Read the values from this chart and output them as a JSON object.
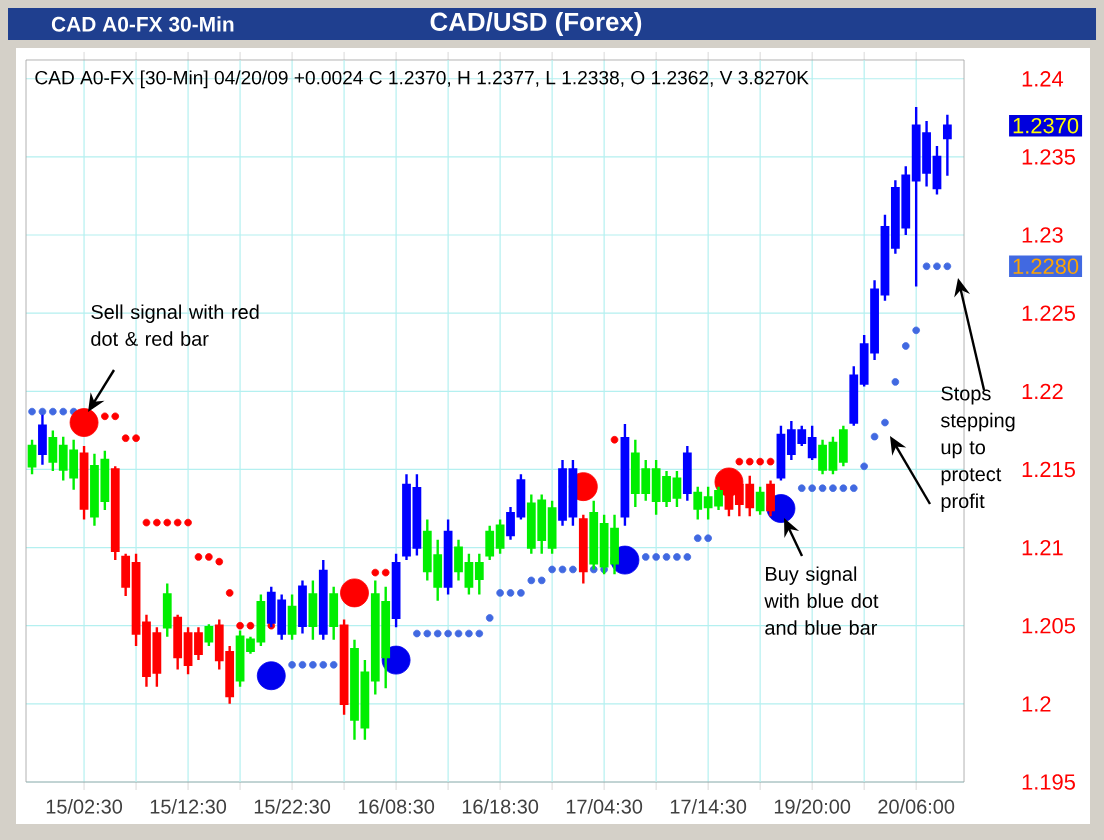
{
  "chart_data": {
    "type": "candlestick",
    "title": "CAD/USD (Forex)",
    "subtitle": "CAD A0-FX 30-Min",
    "categories": [
      null,
      null,
      null,
      null,
      null,
      "15/02:30",
      null,
      null,
      null,
      null,
      null,
      null,
      null,
      null,
      null,
      "15/12:30",
      null,
      null,
      null,
      null,
      null,
      null,
      null,
      null,
      null,
      "15/22:30",
      null,
      null,
      null,
      null,
      null,
      null,
      null,
      null,
      null,
      "16/08:30",
      null,
      null,
      null,
      null,
      null,
      null,
      null,
      null,
      null,
      "16/18:30",
      null,
      null,
      null,
      null,
      null,
      null,
      null,
      null,
      null,
      "17/04:30",
      null,
      null,
      null,
      null,
      null,
      null,
      null,
      null,
      null,
      "17/14:30",
      null,
      null,
      null,
      null,
      null,
      null,
      null,
      null,
      null,
      "19/20:00",
      null,
      null,
      null,
      null,
      null,
      null,
      null,
      null,
      null,
      "20/06:00",
      null,
      null,
      null
    ],
    "ohlc": [
      [
        1.2152,
        1.2169,
        1.2147,
        1.2165
      ],
      [
        1.216,
        1.2185,
        1.2153,
        1.2178
      ],
      [
        1.2155,
        1.2175,
        1.2149,
        1.217
      ],
      [
        1.215,
        1.2171,
        1.2143,
        1.2165
      ],
      [
        1.2145,
        1.2169,
        1.2137,
        1.2162
      ],
      [
        1.216,
        1.2165,
        1.2118,
        1.2125
      ],
      [
        1.212,
        1.216,
        1.2114,
        1.2152
      ],
      [
        1.213,
        1.2162,
        1.2124,
        1.2156
      ],
      [
        1.215,
        1.2152,
        1.2092,
        1.2098
      ],
      [
        1.2094,
        1.2096,
        1.2069,
        1.2075
      ],
      [
        1.209,
        1.2096,
        1.2037,
        1.2045
      ],
      [
        1.2052,
        1.2057,
        1.2011,
        1.2018
      ],
      [
        1.2045,
        1.2049,
        1.2011,
        1.202
      ],
      [
        1.2049,
        1.2077,
        1.2043,
        1.207
      ],
      [
        1.2055,
        1.2057,
        1.2022,
        1.203
      ],
      [
        1.2045,
        1.2049,
        1.2019,
        1.2025
      ],
      [
        1.2045,
        1.2049,
        1.2028,
        1.2032
      ],
      [
        1.204,
        1.2051,
        1.2037,
        1.2049
      ],
      [
        1.205,
        1.2054,
        1.2022,
        1.2028
      ],
      [
        1.2033,
        1.2037,
        1.2,
        1.2005
      ],
      [
        1.2015,
        1.2047,
        1.2011,
        1.2043
      ],
      [
        1.2034,
        1.2043,
        1.2032,
        1.2041
      ],
      [
        1.204,
        1.207,
        1.2037,
        1.2065
      ],
      [
        1.2052,
        1.2075,
        1.2049,
        1.2071
      ],
      [
        1.2045,
        1.207,
        1.2041,
        1.2066
      ],
      [
        1.2045,
        1.207,
        1.2041,
        1.2062
      ],
      [
        1.205,
        1.2079,
        1.2045,
        1.2075
      ],
      [
        1.205,
        1.2079,
        1.2041,
        1.207
      ],
      [
        1.2045,
        1.2092,
        1.2041,
        1.2085
      ],
      [
        1.205,
        1.2075,
        1.2041,
        1.207
      ],
      [
        1.205,
        1.2054,
        1.1993,
        1.2
      ],
      [
        1.199,
        1.2041,
        1.1977,
        1.2035
      ],
      [
        1.1985,
        1.2028,
        1.1977,
        1.202
      ],
      [
        1.2015,
        1.2079,
        1.2006,
        1.207
      ],
      [
        1.203,
        1.2075,
        1.201,
        1.2065
      ],
      [
        1.2055,
        1.2096,
        1.2049,
        1.209
      ],
      [
        1.2095,
        1.2147,
        1.2092,
        1.214
      ],
      [
        1.21,
        1.2147,
        1.2095,
        1.2138
      ],
      [
        1.2085,
        1.2118,
        1.2079,
        1.211
      ],
      [
        1.2075,
        1.2105,
        1.2066,
        1.2095
      ],
      [
        1.2075,
        1.2118,
        1.207,
        1.211
      ],
      [
        1.2085,
        1.2105,
        1.2079,
        1.21
      ],
      [
        1.2075,
        1.2096,
        1.207,
        1.209
      ],
      [
        1.208,
        1.2096,
        1.207,
        1.209
      ],
      [
        1.2095,
        1.2114,
        1.2092,
        1.211
      ],
      [
        1.21,
        1.2118,
        1.2096,
        1.2114
      ],
      [
        1.2108,
        1.2126,
        1.2105,
        1.2122
      ],
      [
        1.212,
        1.2147,
        1.2118,
        1.2143
      ],
      [
        1.21,
        1.2134,
        1.2096,
        1.2128
      ],
      [
        1.2105,
        1.2134,
        1.2096,
        1.213
      ],
      [
        1.21,
        1.213,
        1.2096,
        1.2125
      ],
      [
        1.2118,
        1.2156,
        1.2114,
        1.215
      ],
      [
        1.212,
        1.2156,
        1.2114,
        1.215
      ],
      [
        1.2118,
        1.2121,
        1.2077,
        1.2085
      ],
      [
        1.209,
        1.213,
        1.2086,
        1.2122
      ],
      [
        1.2088,
        1.2121,
        1.2083,
        1.2115
      ],
      [
        1.209,
        1.2121,
        1.2083,
        1.2112
      ],
      [
        1.212,
        1.2179,
        1.2114,
        1.217
      ],
      [
        1.2135,
        1.2169,
        1.2126,
        1.216
      ],
      [
        1.2135,
        1.2156,
        1.213,
        1.215
      ],
      [
        1.213,
        1.2156,
        1.2121,
        1.215
      ],
      [
        1.213,
        1.2149,
        1.2126,
        1.2145
      ],
      [
        1.2132,
        1.2149,
        1.2126,
        1.2144
      ],
      [
        1.2135,
        1.2165,
        1.213,
        1.216
      ],
      [
        1.2125,
        1.2139,
        1.2118,
        1.2135
      ],
      [
        1.2126,
        1.2139,
        1.2118,
        1.2132
      ],
      [
        1.2127,
        1.2139,
        1.2124,
        1.2136
      ],
      [
        1.2143,
        1.2147,
        1.212,
        1.2125
      ],
      [
        1.214,
        1.2147,
        1.212,
        1.2128
      ],
      [
        1.214,
        1.2146,
        1.212,
        1.2126
      ],
      [
        1.2124,
        1.2139,
        1.2121,
        1.2135
      ],
      [
        1.214,
        1.2143,
        1.212,
        1.2124
      ],
      [
        1.2145,
        1.2178,
        1.2143,
        1.2172
      ],
      [
        1.216,
        1.2181,
        1.2156,
        1.2175
      ],
      [
        1.2167,
        1.2178,
        1.2165,
        1.2175
      ],
      [
        1.2158,
        1.2178,
        1.2156,
        1.217
      ],
      [
        1.215,
        1.2169,
        1.2147,
        1.2165
      ],
      [
        1.215,
        1.2171,
        1.2147,
        1.2167
      ],
      [
        1.2155,
        1.2178,
        1.2152,
        1.2175
      ],
      [
        1.218,
        1.2216,
        1.2178,
        1.221
      ],
      [
        1.2205,
        1.2236,
        1.2203,
        1.223
      ],
      [
        1.2225,
        1.2271,
        1.222,
        1.2265
      ],
      [
        1.2262,
        1.2313,
        1.2258,
        1.2305
      ],
      [
        1.2292,
        1.2335,
        1.2288,
        1.233
      ],
      [
        1.2305,
        1.2344,
        1.23,
        1.2338
      ],
      [
        1.2335,
        1.2382,
        1.2267,
        1.237
      ],
      [
        1.234,
        1.2373,
        1.2331,
        1.2365
      ],
      [
        1.233,
        1.2357,
        1.2326,
        1.235
      ],
      [
        1.2362,
        1.2377,
        1.2338,
        1.237
      ]
    ],
    "colors": [
      "#00ee00",
      "#0000ff",
      "#00ee00",
      "#00ee00",
      "#00ee00",
      "#ff0000",
      "#00ee00",
      "#00ee00",
      "#ff0000",
      "#ff0000",
      "#ff0000",
      "#ff0000",
      "#ff0000",
      "#00ee00",
      "#ff0000",
      "#ff0000",
      "#ff0000",
      "#00ee00",
      "#ff0000",
      "#ff0000",
      "#00ee00",
      "#00ee00",
      "#00ee00",
      "#0000ff",
      "#0000ff",
      "#00ee00",
      "#0000ff",
      "#00ee00",
      "#0000ff",
      "#00ee00",
      "#ff0000",
      "#00ee00",
      "#00ee00",
      "#00ee00",
      "#00ee00",
      "#0000ff",
      "#0000ff",
      "#0000ff",
      "#00ee00",
      "#00ee00",
      "#0000ff",
      "#00ee00",
      "#00ee00",
      "#00ee00",
      "#00ee00",
      "#00ee00",
      "#0000ff",
      "#0000ff",
      "#00ee00",
      "#00ee00",
      "#00ee00",
      "#0000ff",
      "#0000ff",
      "#ff0000",
      "#00ee00",
      "#00ee00",
      "#00ee00",
      "#0000ff",
      "#00ee00",
      "#00ee00",
      "#00ee00",
      "#00ee00",
      "#00ee00",
      "#0000ff",
      "#00ee00",
      "#00ee00",
      "#00ee00",
      "#ff0000",
      "#ff0000",
      "#ff0000",
      "#00ee00",
      "#ff0000",
      "#0000ff",
      "#0000ff",
      "#0000ff",
      "#0000ff",
      "#00ee00",
      "#00ee00",
      "#00ee00",
      "#0000ff",
      "#0000ff",
      "#0000ff",
      "#0000ff",
      "#0000ff",
      "#0000ff",
      "#0000ff",
      "#0000ff",
      "#0000ff",
      "#0000ff"
    ],
    "series": [
      {
        "type": "scatter",
        "color": "#ff0000",
        "marker": "circle",
        "values": [
          null,
          null,
          null,
          null,
          null,
          null,
          null,
          1.2184,
          1.2184,
          1.217,
          1.217,
          1.2116,
          1.2116,
          1.2116,
          1.2116,
          1.2116,
          1.2094,
          1.2094,
          1.2091,
          1.2071,
          1.205,
          1.205,
          null,
          1.205,
          null,
          null,
          null,
          null,
          null,
          null,
          null,
          null,
          null,
          1.2084,
          1.2084,
          null,
          null,
          null,
          null,
          null,
          null,
          null,
          null,
          null,
          null,
          null,
          null,
          null,
          null,
          null,
          null,
          null,
          null,
          null,
          null,
          null,
          1.2169,
          null,
          null,
          null,
          null,
          null,
          null,
          null,
          null,
          null,
          null,
          null,
          1.2155,
          1.2155,
          1.2155,
          1.2155,
          null,
          null,
          null,
          null,
          null,
          null,
          null,
          null,
          null,
          null,
          null,
          null,
          null,
          null,
          null,
          null,
          null
        ]
      },
      {
        "type": "scatter",
        "color": "#4169e1",
        "marker": "circle",
        "values": [
          1.2187,
          1.2187,
          1.2187,
          1.2187,
          1.2187,
          null,
          null,
          null,
          null,
          null,
          null,
          null,
          null,
          null,
          null,
          null,
          null,
          null,
          null,
          null,
          null,
          null,
          null,
          null,
          null,
          1.2025,
          1.2025,
          1.2025,
          1.2025,
          1.2025,
          null,
          null,
          null,
          null,
          null,
          null,
          null,
          1.2045,
          1.2045,
          1.2045,
          1.2045,
          1.2045,
          1.2045,
          1.2045,
          1.2055,
          1.2071,
          1.2071,
          1.2071,
          1.2079,
          1.2079,
          1.2086,
          1.2086,
          1.2086,
          null,
          1.2086,
          1.2086,
          null,
          null,
          null,
          1.2094,
          1.2094,
          1.2094,
          1.2094,
          1.2094,
          1.2106,
          1.2106,
          null,
          null,
          null,
          null,
          null,
          null,
          null,
          null,
          1.2138,
          1.2138,
          1.2138,
          1.2138,
          1.2138,
          1.2138,
          1.2152,
          1.2171,
          1.218,
          1.2206,
          1.2229,
          1.2239,
          1.228,
          1.228,
          1.228
        ]
      },
      {
        "type": "bubble",
        "color": "#ff0000",
        "marker": "circle",
        "values": [
          null,
          null,
          null,
          null,
          null,
          1.218,
          null,
          null,
          null,
          null,
          null,
          null,
          null,
          null,
          null,
          null,
          null,
          null,
          null,
          null,
          null,
          null,
          null,
          null,
          null,
          null,
          null,
          null,
          null,
          null,
          null,
          1.2071,
          null,
          null,
          null,
          null,
          null,
          null,
          null,
          null,
          null,
          null,
          null,
          null,
          null,
          null,
          null,
          null,
          null,
          null,
          null,
          null,
          null,
          1.2139,
          null,
          null,
          null,
          null,
          null,
          null,
          null,
          null,
          null,
          null,
          null,
          null,
          null,
          1.2142,
          null,
          null,
          null,
          null,
          null,
          null,
          null,
          null,
          null,
          null,
          null,
          null,
          null,
          null,
          null,
          null,
          null,
          null,
          null,
          null,
          null
        ],
        "sizes": [
          null,
          null,
          null,
          null,
          null,
          1,
          null,
          null,
          null,
          null,
          null,
          null,
          null,
          null,
          null,
          null,
          null,
          null,
          null,
          null,
          null,
          null,
          null,
          null,
          null,
          null,
          null,
          null,
          null,
          null,
          null,
          1,
          null,
          null,
          null,
          null,
          null,
          null,
          null,
          null,
          null,
          null,
          null,
          null,
          null,
          null,
          null,
          null,
          null,
          null,
          null,
          null,
          null,
          1,
          null,
          null,
          null,
          null,
          null,
          null,
          null,
          null,
          null,
          null,
          null,
          null,
          null,
          1,
          null,
          null,
          null,
          null,
          null,
          null,
          null,
          null,
          null,
          null,
          null,
          null,
          null,
          null,
          null,
          null,
          null,
          null,
          null,
          null,
          null
        ]
      },
      {
        "type": "bubble",
        "color": "#0000ee",
        "marker": "circle",
        "values": [
          null,
          null,
          null,
          null,
          null,
          null,
          null,
          null,
          null,
          null,
          null,
          null,
          null,
          null,
          null,
          null,
          null,
          null,
          null,
          null,
          null,
          null,
          null,
          1.2018,
          null,
          null,
          null,
          null,
          null,
          null,
          null,
          null,
          null,
          null,
          null,
          1.2028,
          null,
          null,
          null,
          null,
          null,
          null,
          null,
          null,
          null,
          null,
          null,
          null,
          null,
          null,
          null,
          null,
          null,
          null,
          null,
          null,
          null,
          1.2092,
          null,
          null,
          null,
          null,
          null,
          null,
          null,
          null,
          null,
          null,
          null,
          null,
          null,
          null,
          1.2125,
          null,
          null,
          null,
          null,
          null,
          null,
          null,
          null,
          null,
          null,
          null,
          null,
          null,
          null,
          null,
          null
        ],
        "sizes": [
          null,
          null,
          null,
          null,
          null,
          null,
          null,
          null,
          null,
          null,
          null,
          null,
          null,
          null,
          null,
          null,
          null,
          null,
          null,
          null,
          null,
          null,
          null,
          1,
          null,
          null,
          null,
          null,
          null,
          null,
          null,
          null,
          null,
          null,
          null,
          1,
          null,
          null,
          null,
          null,
          null,
          null,
          null,
          null,
          null,
          null,
          null,
          null,
          null,
          null,
          null,
          null,
          null,
          null,
          null,
          null,
          null,
          1,
          null,
          null,
          null,
          null,
          null,
          null,
          null,
          null,
          null,
          null,
          null,
          null,
          null,
          null,
          1,
          null,
          null,
          null,
          null,
          null,
          null,
          null,
          null,
          null,
          null,
          null,
          null,
          null,
          null,
          null,
          null
        ]
      }
    ],
    "ylim": [
      1.195,
      1.2412
    ],
    "yticks": [
      1.195,
      1.2,
      1.205,
      1.21,
      1.215,
      1.22,
      1.225,
      1.23,
      1.235,
      1.24,
      {
        "value": 1.237,
        "label": "1.2370"
      },
      {
        "value": 1.228,
        "label": "1.2280"
      }
    ],
    "grid": true,
    "annotations": [
      "CAD A0-FX [30-Min] 04/20/09  +0.0024 C 1.2370, H 1.2377, L 1.2338, O 1.2362, V 3.8270K",
      "Sell signal with red dot & red bar",
      "Buy signal with blue dot and blue bar",
      "Stops stepping up to protect profit"
    ]
  }
}
